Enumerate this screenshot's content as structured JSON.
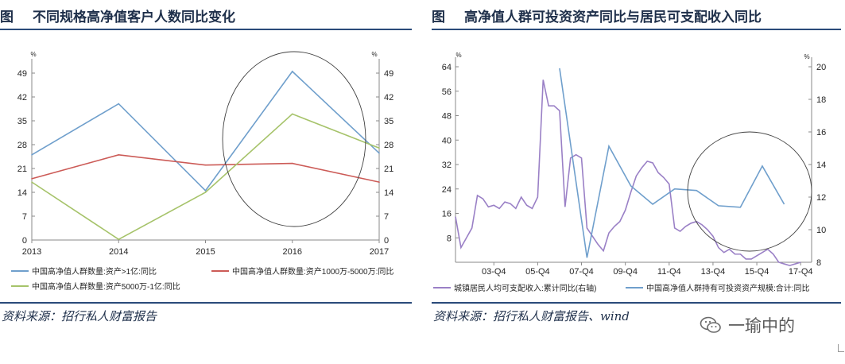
{
  "left_panel": {
    "fig_label": "图",
    "title": "不同规格高净值客户人数同比变化",
    "source": "资料来源：招行私人财富报告"
  },
  "right_panel": {
    "fig_label": "图",
    "title": "高净值人群可投资资产同比与居民可支配收入同比",
    "source": "资料来源：招行私人财富报告、wind"
  },
  "watermark": {
    "text": "一瑜中的",
    "icon": "wechat-icon"
  },
  "colors": {
    "blue": "#6f9fcc",
    "red": "#cc5b57",
    "green": "#a6c36a",
    "purple": "#9a80c6",
    "rule": "#2a4a7a"
  },
  "chart_data": [
    {
      "type": "line",
      "x": [
        "2013",
        "2014",
        "2015",
        "2016",
        "2017"
      ],
      "y_unit": "%",
      "ylim": [
        0,
        49
      ],
      "yticks": [
        "0",
        "7",
        "14",
        "21",
        "28",
        "35",
        "42",
        "49"
      ],
      "y2_unit": "%",
      "y2lim": [
        0,
        49
      ],
      "y2ticks": [
        "0",
        "7",
        "14",
        "21",
        "28",
        "35",
        "42",
        "49"
      ],
      "grid": false,
      "legend_position": "bottom",
      "annotation": "circle around 2016-2017",
      "series": [
        {
          "name": "中国高净值人群数量:资产>1亿:同比",
          "color": "#6f9fcc",
          "values": [
            25,
            40,
            14.5,
            49.5,
            25.5
          ]
        },
        {
          "name": "中国高净值人群数量:资产1000万-5000万:同比",
          "color": "#cc5b57",
          "values": [
            18,
            25,
            22,
            22.5,
            17
          ]
        },
        {
          "name": "中国高净值人群数量:资产5000万-1亿:同比",
          "color": "#a6c36a",
          "values": [
            17,
            0.2,
            14,
            37,
            27
          ]
        }
      ]
    },
    {
      "type": "line",
      "x_ticks": [
        "03-Q4",
        "05-Q4",
        "07-Q4",
        "09-Q4",
        "11-Q4",
        "13-Q4",
        "15-Q4",
        "17-Q4"
      ],
      "y_unit": "%",
      "ylim": [
        0,
        64
      ],
      "yticks": [
        "8",
        "16",
        "24",
        "32",
        "40",
        "48",
        "56",
        "64"
      ],
      "y2_unit": "%",
      "y2lim": [
        8,
        20
      ],
      "y2ticks": [
        "8",
        "10",
        "12",
        "14",
        "16",
        "18",
        "20"
      ],
      "grid": false,
      "legend_position": "bottom",
      "annotation": "circle around 13-Q4 to 17-Q4",
      "series": [
        {
          "name": "城镇居民人均可支配收入:累计同比(右轴)",
          "axis": "right",
          "color": "#9a80c6",
          "x": [
            2002.0,
            2002.25,
            2002.5,
            2002.75,
            2003.0,
            2003.25,
            2003.5,
            2003.75,
            2004.0,
            2004.25,
            2004.5,
            2004.75,
            2005.0,
            2005.25,
            2005.5,
            2005.75,
            2006.0,
            2006.25,
            2006.5,
            2006.75,
            2007.0,
            2007.25,
            2007.5,
            2007.75,
            2008.0,
            2008.25,
            2008.5,
            2008.75,
            2009.0,
            2009.25,
            2009.5,
            2009.75,
            2010.0,
            2010.25,
            2010.5,
            2010.75,
            2011.0,
            2011.25,
            2011.5,
            2011.75,
            2012.0,
            2012.25,
            2012.5,
            2012.75,
            2013.0,
            2013.25,
            2013.5,
            2013.75,
            2014.0,
            2014.25,
            2014.5,
            2014.75,
            2015.0,
            2015.25,
            2015.5,
            2015.75,
            2016.0,
            2016.25,
            2016.5,
            2016.75,
            2017.0,
            2017.25,
            2017.5,
            2017.75
          ],
          "values": [
            10.8,
            8.9,
            9.5,
            10.1,
            12.1,
            11.9,
            11.4,
            11.5,
            11.3,
            11.7,
            11.6,
            11.3,
            12.0,
            11.5,
            11.3,
            12.0,
            19.2,
            17.6,
            17.6,
            17.3,
            11.4,
            14.4,
            14.6,
            14.4,
            10.1,
            9.6,
            9.1,
            8.7,
            9.8,
            10.2,
            10.5,
            11.2,
            12.3,
            13.3,
            13.8,
            14.2,
            14.1,
            13.5,
            13.2,
            12.8,
            10.1,
            9.9,
            10.2,
            10.4,
            10.5,
            10.3,
            10.0,
            9.6,
            8.9,
            8.6,
            8.8,
            8.5,
            8.5,
            8.2,
            8.2,
            8.4,
            8.6,
            8.8,
            8.5,
            8.0,
            7.9,
            7.8,
            7.9,
            8.0
          ]
        },
        {
          "name": "中国高净值人群持有可投资资产规模:合计:同比",
          "axis": "left",
          "color": "#6f9fcc",
          "x": [
            2006.75,
            2008.0,
            2009.0,
            2010.0,
            2011.0,
            2012.0,
            2013.0,
            2014.0,
            2015.0,
            2016.0,
            2017.0
          ],
          "values": [
            63.5,
            1.5,
            38,
            25,
            19,
            24,
            23.5,
            18.5,
            18,
            31.5,
            19
          ]
        }
      ]
    }
  ]
}
